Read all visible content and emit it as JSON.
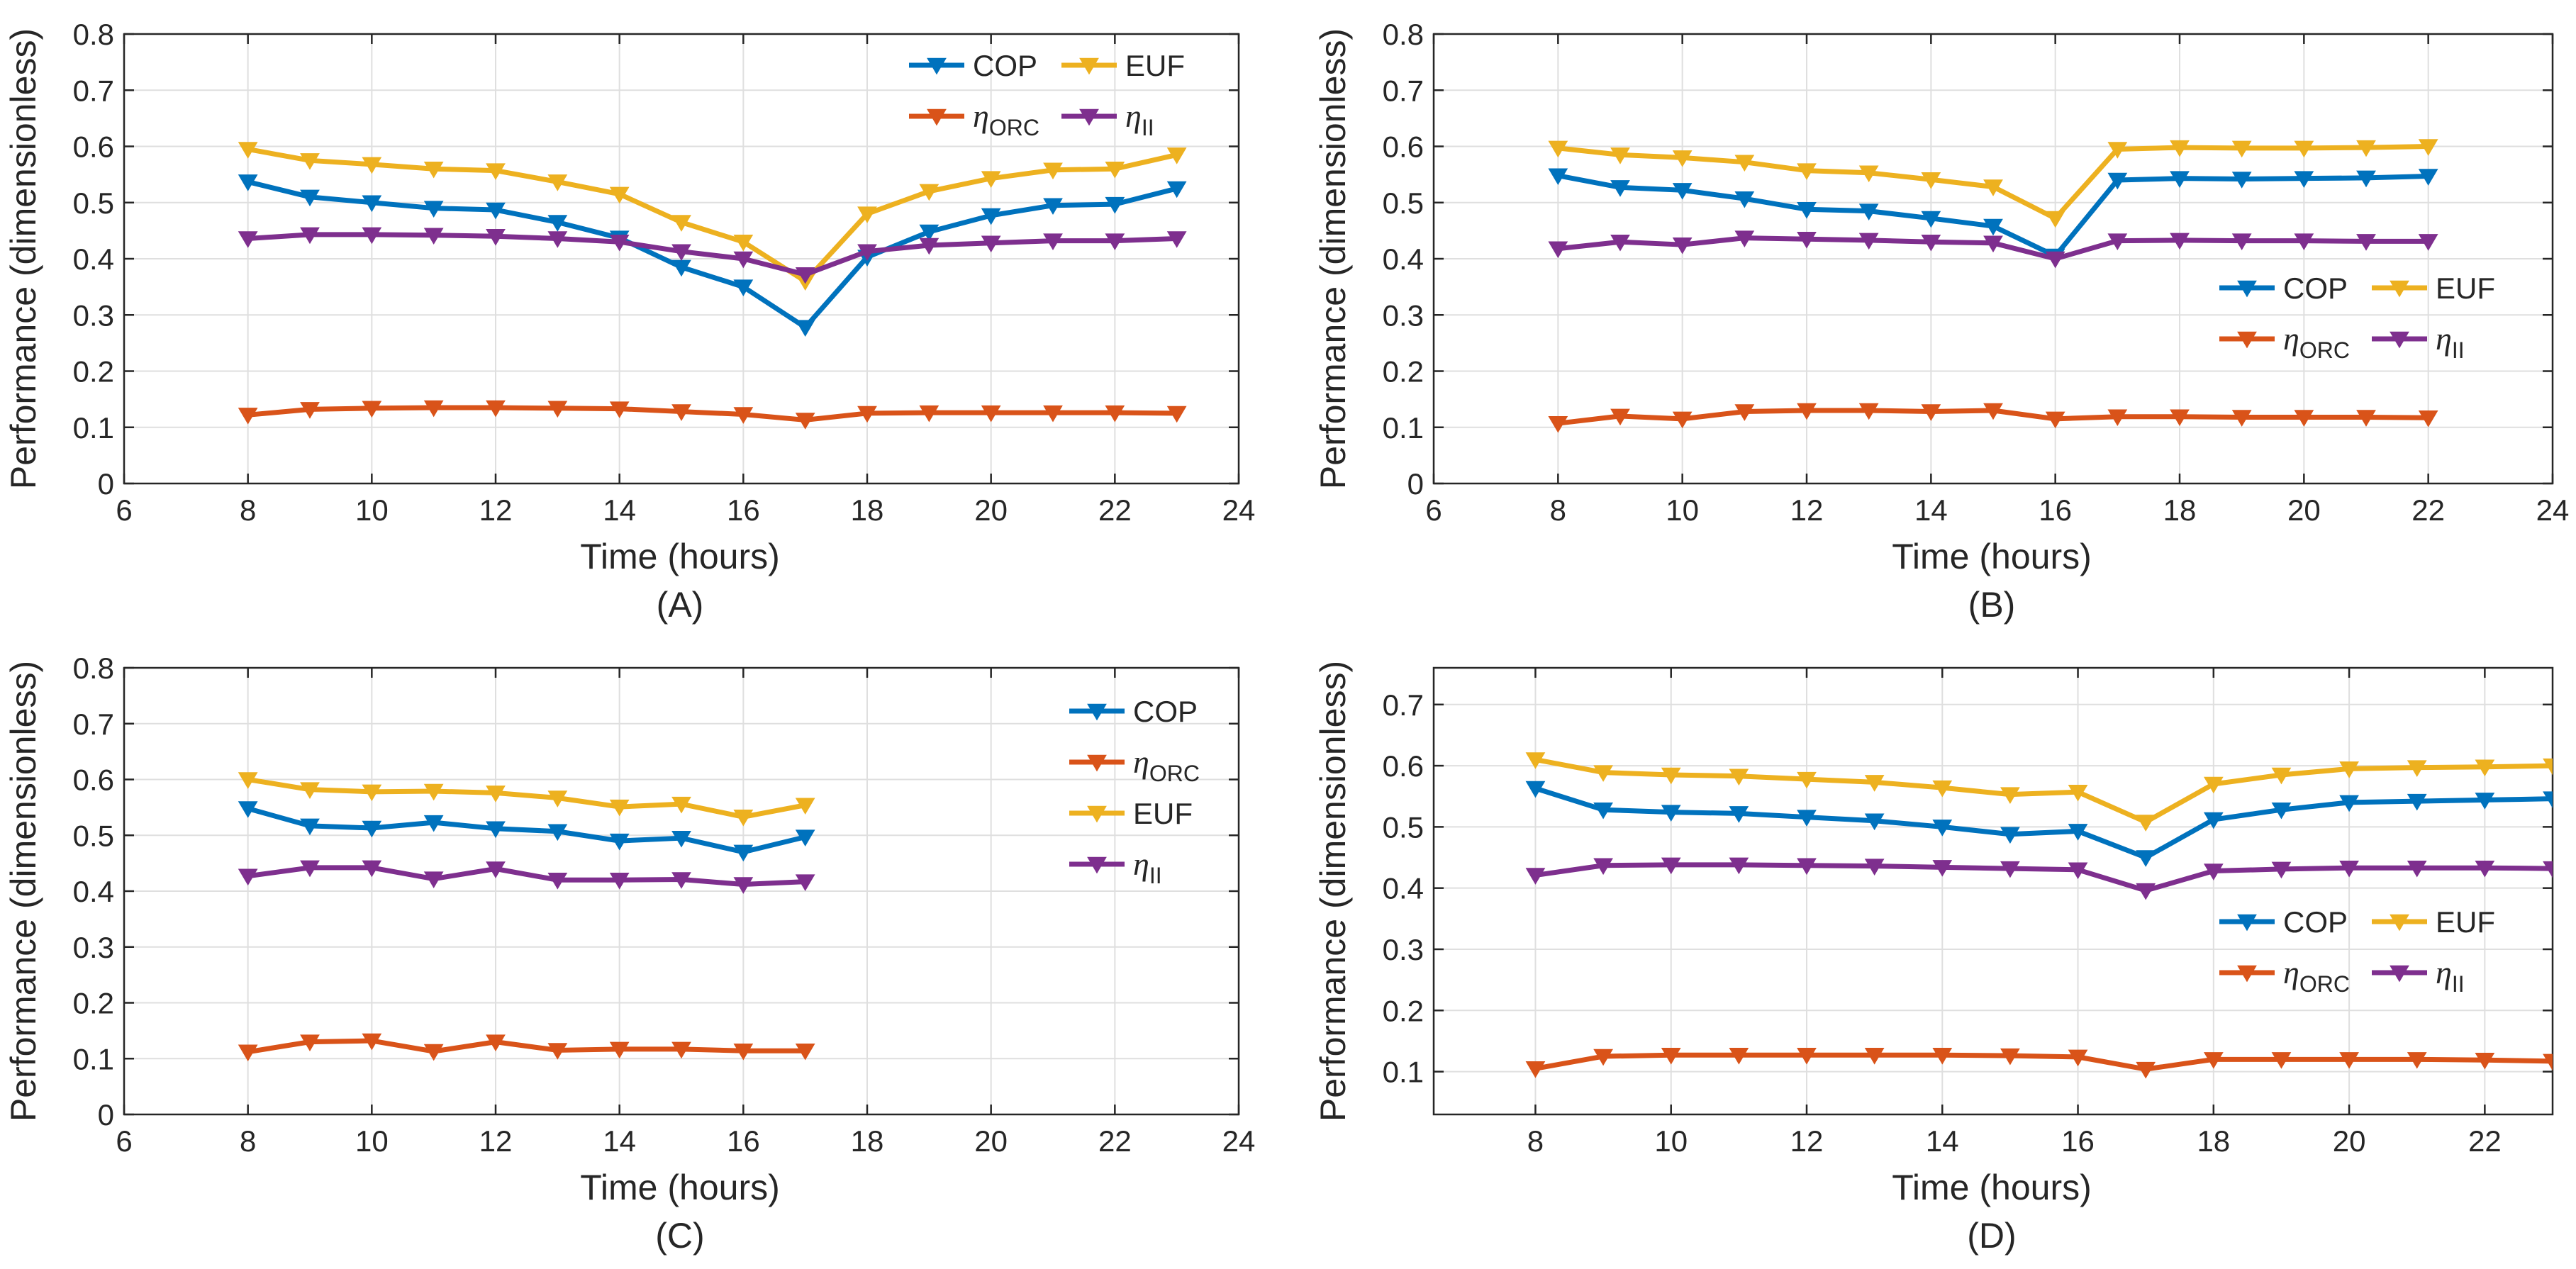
{
  "colors": {
    "cop": "#0072BD",
    "orc": "#D95319",
    "euf": "#EDB120",
    "eta_ii": "#7E2F8E",
    "axis": "#262626",
    "grid": "#DFDFDF"
  },
  "chart_data": [
    {
      "type": "line",
      "panel_label": "(A)",
      "xlabel": "Time (hours)",
      "ylabel": "Performance (dimensionless)",
      "xlim": [
        6,
        24
      ],
      "ylim": [
        0,
        0.8
      ],
      "xticks": [
        6,
        8,
        10,
        12,
        14,
        16,
        18,
        20,
        22,
        24
      ],
      "yticks": [
        0,
        0.1,
        0.2,
        0.3,
        0.4,
        0.5,
        0.6,
        0.7,
        0.8
      ],
      "grid": true,
      "legend": {
        "position": "top-right",
        "layout": "two-column"
      },
      "x": [
        8,
        9,
        10,
        11,
        12,
        13,
        14,
        15,
        16,
        17,
        18,
        19,
        20,
        21,
        22,
        23
      ],
      "series": [
        {
          "key": "cop",
          "name": "COP",
          "values": [
            0.537,
            0.51,
            0.5,
            0.49,
            0.487,
            0.465,
            0.437,
            0.385,
            0.35,
            0.278,
            0.403,
            0.448,
            0.477,
            0.495,
            0.497,
            0.525
          ]
        },
        {
          "key": "euf",
          "name": "EUF",
          "values": [
            0.595,
            0.575,
            0.568,
            0.56,
            0.557,
            0.537,
            0.515,
            0.465,
            0.43,
            0.36,
            0.48,
            0.52,
            0.543,
            0.558,
            0.56,
            0.585
          ]
        },
        {
          "key": "orc",
          "name": "η",
          "sub": "ORC",
          "values": [
            0.122,
            0.132,
            0.134,
            0.135,
            0.135,
            0.134,
            0.133,
            0.128,
            0.123,
            0.113,
            0.125,
            0.126,
            0.126,
            0.126,
            0.126,
            0.125
          ]
        },
        {
          "key": "eta_ii",
          "name": "η",
          "sub": "II",
          "values": [
            0.436,
            0.443,
            0.443,
            0.442,
            0.44,
            0.436,
            0.43,
            0.413,
            0.4,
            0.372,
            0.413,
            0.424,
            0.428,
            0.432,
            0.432,
            0.436
          ]
        }
      ]
    },
    {
      "type": "line",
      "panel_label": "(B)",
      "xlabel": "Time (hours)",
      "ylabel": "Performance (dimensionless)",
      "xlim": [
        6,
        24
      ],
      "ylim": [
        0,
        0.8
      ],
      "xticks": [
        6,
        8,
        10,
        12,
        14,
        16,
        18,
        20,
        22,
        24
      ],
      "yticks": [
        0,
        0.1,
        0.2,
        0.3,
        0.4,
        0.5,
        0.6,
        0.7,
        0.8
      ],
      "grid": true,
      "legend": {
        "position": "middle-right",
        "layout": "two-column"
      },
      "x": [
        8,
        9,
        10,
        11,
        12,
        13,
        14,
        15,
        16,
        17,
        18,
        19,
        20,
        21,
        22
      ],
      "series": [
        {
          "key": "cop",
          "name": "COP",
          "values": [
            0.548,
            0.527,
            0.522,
            0.507,
            0.488,
            0.485,
            0.472,
            0.458,
            0.405,
            0.54,
            0.543,
            0.542,
            0.543,
            0.544,
            0.547
          ]
        },
        {
          "key": "euf",
          "name": "EUF",
          "values": [
            0.597,
            0.585,
            0.58,
            0.572,
            0.557,
            0.553,
            0.541,
            0.528,
            0.472,
            0.595,
            0.598,
            0.597,
            0.597,
            0.598,
            0.6
          ]
        },
        {
          "key": "orc",
          "name": "η",
          "sub": "ORC",
          "values": [
            0.107,
            0.12,
            0.115,
            0.128,
            0.13,
            0.13,
            0.128,
            0.13,
            0.115,
            0.119,
            0.119,
            0.118,
            0.118,
            0.118,
            0.117
          ]
        },
        {
          "key": "eta_ii",
          "name": "η",
          "sub": "II",
          "values": [
            0.418,
            0.43,
            0.425,
            0.437,
            0.435,
            0.433,
            0.43,
            0.428,
            0.4,
            0.432,
            0.433,
            0.432,
            0.432,
            0.431,
            0.431
          ]
        }
      ]
    },
    {
      "type": "line",
      "panel_label": "(C)",
      "xlabel": "Time (hours)",
      "ylabel": "Performance (dimensionless)",
      "xlim": [
        6,
        24
      ],
      "ylim": [
        0,
        0.8
      ],
      "xticks": [
        6,
        8,
        10,
        12,
        14,
        16,
        18,
        20,
        22,
        24
      ],
      "yticks": [
        0,
        0.1,
        0.2,
        0.3,
        0.4,
        0.5,
        0.6,
        0.7,
        0.8
      ],
      "grid": true,
      "legend": {
        "position": "top-right",
        "layout": "single-column"
      },
      "x": [
        8,
        9,
        10,
        11,
        12,
        13,
        14,
        15,
        16,
        17
      ],
      "series": [
        {
          "key": "cop",
          "name": "COP",
          "values": [
            0.548,
            0.517,
            0.513,
            0.523,
            0.512,
            0.507,
            0.49,
            0.495,
            0.47,
            0.497
          ]
        },
        {
          "key": "orc",
          "name": "η",
          "sub": "ORC",
          "values": [
            0.112,
            0.13,
            0.132,
            0.113,
            0.13,
            0.115,
            0.117,
            0.117,
            0.114,
            0.114
          ]
        },
        {
          "key": "euf",
          "name": "EUF",
          "values": [
            0.6,
            0.582,
            0.578,
            0.579,
            0.576,
            0.567,
            0.551,
            0.556,
            0.533,
            0.554
          ]
        },
        {
          "key": "eta_ii",
          "name": "η",
          "sub": "II",
          "values": [
            0.427,
            0.442,
            0.442,
            0.422,
            0.44,
            0.42,
            0.42,
            0.421,
            0.412,
            0.417
          ]
        }
      ]
    },
    {
      "type": "line",
      "panel_label": "(D)",
      "xlabel": "Time (hours)",
      "ylabel": "Performance (dimensionless)",
      "xlim": [
        6.5,
        23
      ],
      "ylim": [
        0.03,
        0.76
      ],
      "xticks": [
        8,
        10,
        12,
        14,
        16,
        18,
        20,
        22
      ],
      "yticks": [
        0.1,
        0.2,
        0.3,
        0.4,
        0.5,
        0.6,
        0.7
      ],
      "grid": true,
      "legend": {
        "position": "middle-right",
        "layout": "two-column"
      },
      "x": [
        8,
        9,
        10,
        11,
        12,
        13,
        14,
        15,
        16,
        17,
        18,
        19,
        20,
        21,
        22,
        23
      ],
      "series": [
        {
          "key": "cop",
          "name": "COP",
          "values": [
            0.563,
            0.528,
            0.524,
            0.522,
            0.516,
            0.51,
            0.5,
            0.488,
            0.493,
            0.45,
            0.512,
            0.528,
            0.54,
            0.542,
            0.544,
            0.546
          ]
        },
        {
          "key": "euf",
          "name": "EUF",
          "values": [
            0.61,
            0.589,
            0.585,
            0.583,
            0.578,
            0.573,
            0.564,
            0.553,
            0.557,
            0.508,
            0.57,
            0.585,
            0.595,
            0.597,
            0.598,
            0.6
          ]
        },
        {
          "key": "orc",
          "name": "η",
          "sub": "ORC",
          "values": [
            0.105,
            0.125,
            0.127,
            0.127,
            0.127,
            0.127,
            0.127,
            0.126,
            0.124,
            0.104,
            0.12,
            0.12,
            0.12,
            0.12,
            0.119,
            0.117
          ]
        },
        {
          "key": "eta_ii",
          "name": "η",
          "sub": "II",
          "values": [
            0.421,
            0.437,
            0.438,
            0.438,
            0.437,
            0.436,
            0.434,
            0.432,
            0.43,
            0.396,
            0.428,
            0.431,
            0.433,
            0.433,
            0.433,
            0.432
          ]
        }
      ]
    }
  ]
}
